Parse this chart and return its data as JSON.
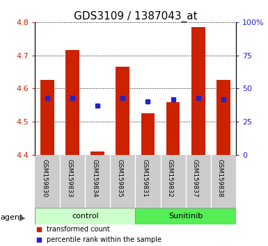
{
  "title": "GDS3109 / 1387043_at",
  "samples": [
    "GSM159830",
    "GSM159833",
    "GSM159834",
    "GSM159835",
    "GSM159831",
    "GSM159832",
    "GSM159837",
    "GSM159838"
  ],
  "bar_bottoms": [
    4.4,
    4.4,
    4.4,
    4.4,
    4.4,
    4.4,
    4.4,
    4.4
  ],
  "bar_tops": [
    4.625,
    4.715,
    4.41,
    4.665,
    4.525,
    4.56,
    4.785,
    4.625
  ],
  "percentile_values": [
    4.572,
    4.572,
    4.548,
    4.572,
    4.562,
    4.568,
    4.572,
    4.568
  ],
  "bar_color": "#cc2200",
  "percentile_color": "#2222cc",
  "ylim_left": [
    4.4,
    4.8
  ],
  "ylim_right": [
    0,
    100
  ],
  "yticks_left": [
    4.4,
    4.5,
    4.6,
    4.7,
    4.8
  ],
  "ytick_labels_left": [
    "4.4",
    "4.5",
    "4.6",
    "4.7",
    "4.8"
  ],
  "yticks_right": [
    0,
    25,
    50,
    75,
    100
  ],
  "ytick_labels_right": [
    "0",
    "25",
    "50",
    "75",
    "100%"
  ],
  "group_control_label": "control",
  "group_sunitinib_label": "Sunitinib",
  "agent_label": "agent",
  "legend_bar_label": "transformed count",
  "legend_dot_label": "percentile rank within the sample",
  "control_color": "#ccffcc",
  "sunitinib_color": "#55ee55",
  "title_fontsize": 11,
  "axis_color_left": "#cc2200",
  "axis_color_right": "#2222cc",
  "tick_area_color": "#cccccc",
  "bar_width": 0.55
}
